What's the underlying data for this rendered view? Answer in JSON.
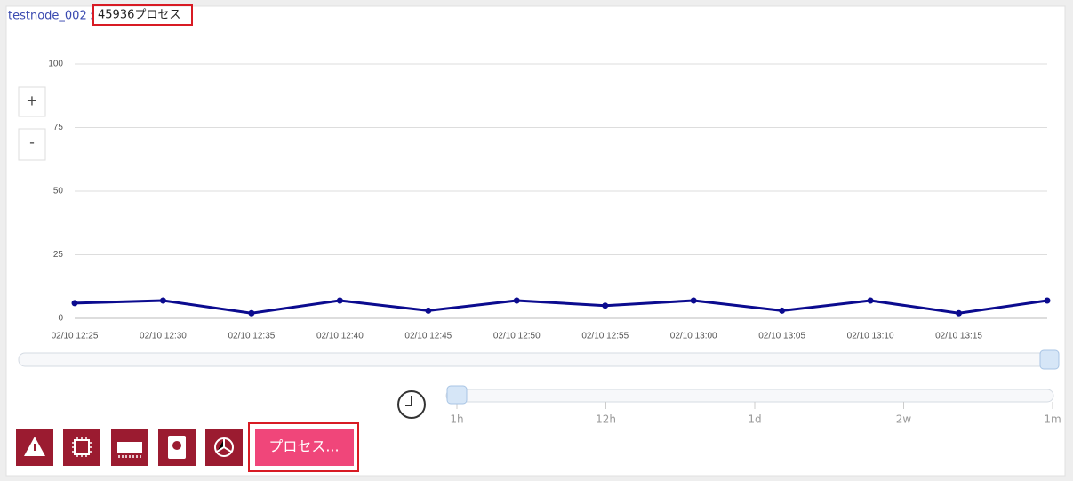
{
  "header": {
    "node": "testnode_002",
    "separator": ":",
    "title": "45936プロセス"
  },
  "zoom": {
    "in": "+",
    "out": "-"
  },
  "chart_data": {
    "type": "line",
    "categories": [
      "02/10 12:25",
      "02/10 12:30",
      "02/10 12:35",
      "02/10 12:40",
      "02/10 12:45",
      "02/10 12:50",
      "02/10 12:55",
      "02/10 13:00",
      "02/10 13:05",
      "02/10 13:10",
      "02/10 13:15",
      null
    ],
    "series": [
      {
        "color": "#0b0b8f",
        "values": [
          6,
          7,
          2,
          7,
          3,
          7,
          5,
          7,
          3,
          7,
          2,
          7
        ]
      }
    ],
    "ylim": [
      0,
      100
    ],
    "yticks": [
      0,
      25,
      50,
      75,
      100
    ],
    "grid": true
  },
  "time_range": {
    "labels": [
      "1h",
      "12h",
      "1d",
      "2w",
      "1m"
    ]
  },
  "button": {
    "label": "プロセス..."
  }
}
